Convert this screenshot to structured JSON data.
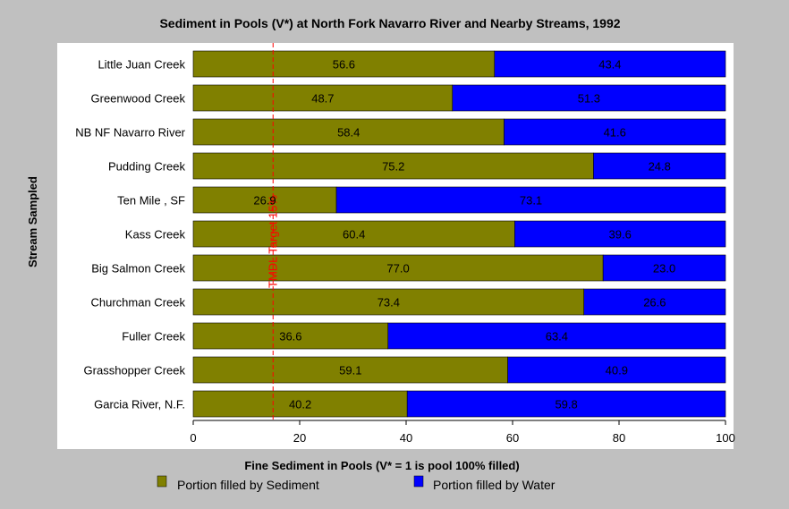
{
  "chart_data": {
    "type": "bar",
    "orientation": "horizontal",
    "stacked": true,
    "title": "Sediment in Pools (V*) at North Fork Navarro River and Nearby Streams, 1992",
    "xlabel": "Fine Sediment in Pools (V* = 1 is pool 100% filled)",
    "ylabel": "Stream Sampled",
    "xlim": [
      0,
      100
    ],
    "xticks": [
      0,
      20,
      40,
      60,
      80,
      100
    ],
    "grid": false,
    "legend_position": "bottom",
    "categories": [
      "Little Juan Creek",
      "Greenwood Creek",
      "NB NF Navarro River",
      "Pudding Creek",
      "Ten Mile , SF",
      "Kass Creek",
      "Big Salmon Creek",
      "Churchman Creek",
      "Fuller Creek",
      "Grasshopper Creek",
      "Garcia River, N.F."
    ],
    "series": [
      {
        "name": "Portion filled by Sediment",
        "color": "#808000",
        "values": [
          56.6,
          48.7,
          58.4,
          75.2,
          26.9,
          60.4,
          77.0,
          73.4,
          36.6,
          59.1,
          40.2
        ],
        "labels": [
          "56.6",
          "48.7",
          "58.4",
          "75.2",
          "26.9",
          "60.4",
          "77.0",
          "73.4",
          "36.6",
          "59.1",
          "40.2"
        ]
      },
      {
        "name": "Portion filled by Water",
        "color": "#0000ff",
        "values": [
          43.4,
          51.3,
          41.6,
          24.8,
          73.1,
          39.6,
          23.0,
          26.6,
          63.4,
          40.9,
          59.8
        ],
        "labels": [
          "43.4",
          "51.3",
          "41.6",
          "24.8",
          "73.1",
          "39.6",
          "23.0",
          "26.6",
          "63.4",
          "40.9",
          "59.8"
        ]
      }
    ],
    "reference_line": {
      "value": 15,
      "label": "TMDL Target 15%",
      "color": "#ff0000",
      "style": "dashed"
    }
  },
  "colors": {
    "background": "#c0c0c0",
    "plot_area": "#ffffff"
  }
}
